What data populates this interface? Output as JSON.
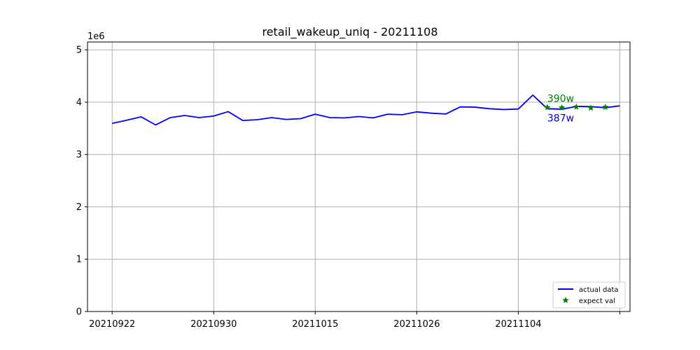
{
  "chart_data": {
    "type": "line",
    "title": "retail_wakeup_uniq - 20211108",
    "xlabel": "",
    "ylabel": "",
    "y_multiplier": "1e6",
    "ylim": [
      0,
      5.15
    ],
    "y_ticks": [
      0,
      1,
      2,
      3,
      4,
      5
    ],
    "y_tick_labels": [
      "0",
      "1",
      "2",
      "3",
      "4",
      "5"
    ],
    "x_tick_labels": [
      "20210922",
      "20210930",
      "20211015",
      "20211026",
      "20211104",
      ""
    ],
    "x_tick_positions": [
      0,
      7,
      14,
      21,
      28,
      35
    ],
    "xlim": [
      -1.7,
      35.7
    ],
    "grid": true,
    "legend_position": "lower-right",
    "series": [
      {
        "name": "actual data",
        "color": "#0000ff",
        "marker": "line",
        "x": [
          0,
          1,
          2,
          3,
          4,
          5,
          6,
          7,
          8,
          9,
          10,
          11,
          12,
          13,
          14,
          15,
          16,
          17,
          18,
          19,
          20,
          21,
          22,
          23,
          24,
          25,
          26,
          27,
          28,
          29,
          30,
          31,
          32,
          33,
          34,
          35
        ],
        "values": [
          3.595,
          3.655,
          3.72,
          3.565,
          3.705,
          3.745,
          3.705,
          3.735,
          3.82,
          3.65,
          3.665,
          3.705,
          3.67,
          3.685,
          3.77,
          3.705,
          3.7,
          3.725,
          3.7,
          3.77,
          3.76,
          3.815,
          3.79,
          3.775,
          3.91,
          3.905,
          3.875,
          3.86,
          3.87,
          4.135,
          3.875,
          3.865,
          3.92,
          3.915,
          3.895,
          3.93
        ]
      },
      {
        "name": "expect val",
        "color": "#008000",
        "marker": "star",
        "x": [
          30,
          31,
          32,
          33,
          34
        ],
        "values": [
          3.9,
          3.895,
          3.91,
          3.89,
          3.905
        ]
      }
    ],
    "annotations": [
      {
        "text": "390w",
        "color": "#008000"
      },
      {
        "text": "387w",
        "color": "#0000cc"
      }
    ]
  }
}
